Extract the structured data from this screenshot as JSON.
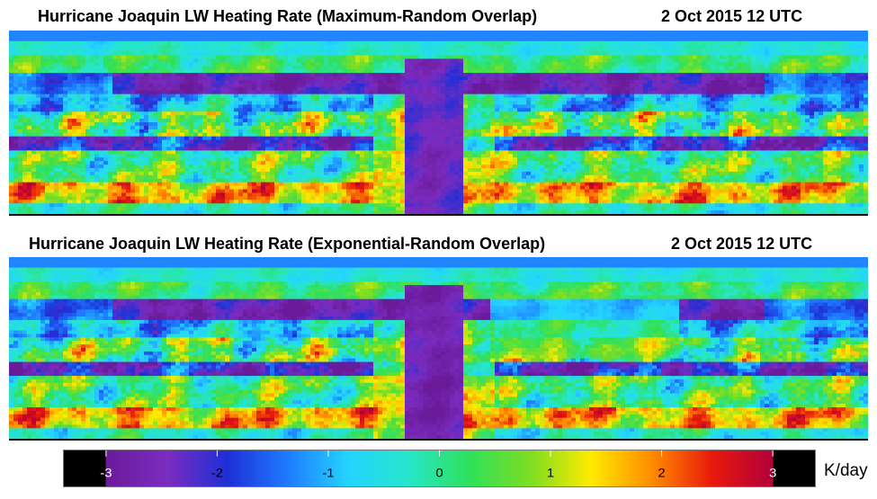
{
  "chart_data": [
    {
      "type": "heatmap",
      "title": "Hurricane Joaquin LW Heating Rate (Maximum-Random Overlap)",
      "date": "2 Oct 2015 12 UTC",
      "xlabel": "",
      "ylabel": ""
    },
    {
      "type": "heatmap",
      "title": "Hurricane Joaquin LW Heating Rate (Exponential-Random Overlap)",
      "date": "2 Oct 2015 12 UTC",
      "xlabel": "",
      "ylabel": ""
    }
  ],
  "colorbar": {
    "unit": "K/day",
    "min": -3,
    "max": 3,
    "tick_labels": [
      "-3",
      "-2",
      "-1",
      "0",
      "1",
      "2",
      "3"
    ],
    "colors": [
      "#000000",
      "#6a1b9a",
      "#7b2cbf",
      "#1e2fd6",
      "#1f7bff",
      "#24d4ff",
      "#27e6c9",
      "#2fe05a",
      "#7dde22",
      "#ffea00",
      "#ff8c00",
      "#e8190b",
      "#b2003a",
      "#000000"
    ]
  }
}
